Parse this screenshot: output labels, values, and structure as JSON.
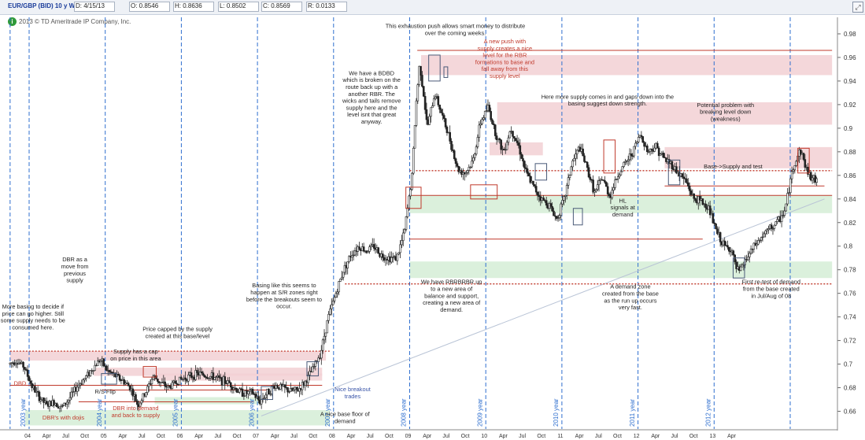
{
  "header": {
    "symbol": "EUR/GBP (BID) 10 y W",
    "date": "D: 4/15/13",
    "open": "O: 0.8546",
    "high": "H: 0.8636",
    "low": "L: 0.8502",
    "close": "C: 0.8569",
    "range": "R: 0.0133"
  },
  "copyright": "2013 © TD Ameritrade IP Company, Inc.",
  "chart_data": {
    "type": "candlestick",
    "y_ticks": [
      0.66,
      0.68,
      0.7,
      0.72,
      0.74,
      0.76,
      0.78,
      0.8,
      0.82,
      0.84,
      0.86,
      0.88,
      0.9,
      0.92,
      0.94,
      0.96,
      0.98
    ],
    "y_tick_labels": [
      "0.66",
      "0.68",
      "0.7",
      "0.72",
      "0.74",
      "0.76",
      "0.78",
      "0.8",
      "0.82",
      "0.84",
      "0.86",
      "0.88",
      "0.9",
      "0.92",
      "0.94",
      "0.96",
      "0.98"
    ],
    "ylim": [
      0.645,
      0.99
    ],
    "x_tick_labels": [
      "04",
      "Apr",
      "Jul",
      "Oct",
      "05",
      "Apr",
      "Jul",
      "Oct",
      "06",
      "Apr",
      "Jul",
      "Oct",
      "07",
      "Apr",
      "Jul",
      "Oct",
      "08",
      "Apr",
      "Jul",
      "Oct",
      "09",
      "Apr",
      "Jul",
      "Oct",
      "10",
      "Apr",
      "Jul",
      "Oct",
      "11",
      "Apr",
      "Jul",
      "Oct",
      "12",
      "Apr",
      "Jul",
      "Oct",
      "13",
      "Apr"
    ],
    "year_labels": [
      "2003 year",
      "2004 year",
      "2005 year",
      "2006 year",
      "2007 year",
      "2008 year",
      "2009 year",
      "2010 year",
      "2011 year",
      "2012 year"
    ],
    "price_path": [
      [
        2003.8,
        0.7
      ],
      [
        2003.9,
        0.703
      ],
      [
        2004.0,
        0.698
      ],
      [
        2004.1,
        0.682
      ],
      [
        2004.2,
        0.672
      ],
      [
        2004.3,
        0.665
      ],
      [
        2004.4,
        0.668
      ],
      [
        2004.5,
        0.663
      ],
      [
        2004.6,
        0.671
      ],
      [
        2004.7,
        0.681
      ],
      [
        2004.8,
        0.688
      ],
      [
        2004.9,
        0.696
      ],
      [
        2005.0,
        0.704
      ],
      [
        2005.1,
        0.694
      ],
      [
        2005.2,
        0.69
      ],
      [
        2005.3,
        0.686
      ],
      [
        2005.4,
        0.68
      ],
      [
        2005.5,
        0.665
      ],
      [
        2005.6,
        0.676
      ],
      [
        2005.7,
        0.69
      ],
      [
        2005.8,
        0.684
      ],
      [
        2005.9,
        0.68
      ],
      [
        2006.0,
        0.685
      ],
      [
        2006.1,
        0.688
      ],
      [
        2006.2,
        0.69
      ],
      [
        2006.3,
        0.692
      ],
      [
        2006.4,
        0.69
      ],
      [
        2006.5,
        0.689
      ],
      [
        2006.6,
        0.686
      ],
      [
        2006.7,
        0.684
      ],
      [
        2006.8,
        0.678
      ],
      [
        2006.9,
        0.675
      ],
      [
        2007.0,
        0.676
      ],
      [
        2007.1,
        0.668
      ],
      [
        2007.2,
        0.676
      ],
      [
        2007.3,
        0.682
      ],
      [
        2007.4,
        0.68
      ],
      [
        2007.5,
        0.677
      ],
      [
        2007.6,
        0.678
      ],
      [
        2007.7,
        0.685
      ],
      [
        2007.8,
        0.696
      ],
      [
        2007.9,
        0.71
      ],
      [
        2008.0,
        0.74
      ],
      [
        2008.1,
        0.76
      ],
      [
        2008.2,
        0.78
      ],
      [
        2008.3,
        0.793
      ],
      [
        2008.4,
        0.8
      ],
      [
        2008.5,
        0.796
      ],
      [
        2008.6,
        0.8
      ],
      [
        2008.7,
        0.792
      ],
      [
        2008.8,
        0.79
      ],
      [
        2008.9,
        0.79
      ],
      [
        2009.0,
        0.812
      ],
      [
        2009.1,
        0.86
      ],
      [
        2009.15,
        0.918
      ],
      [
        2009.2,
        0.955
      ],
      [
        2009.25,
        0.93
      ],
      [
        2009.3,
        0.9
      ],
      [
        2009.4,
        0.93
      ],
      [
        2009.5,
        0.91
      ],
      [
        2009.6,
        0.89
      ],
      [
        2009.7,
        0.865
      ],
      [
        2009.8,
        0.862
      ],
      [
        2009.9,
        0.872
      ],
      [
        2010.0,
        0.905
      ],
      [
        2010.1,
        0.918
      ],
      [
        2010.2,
        0.895
      ],
      [
        2010.3,
        0.88
      ],
      [
        2010.4,
        0.9
      ],
      [
        2010.5,
        0.885
      ],
      [
        2010.6,
        0.862
      ],
      [
        2010.7,
        0.85
      ],
      [
        2010.8,
        0.84
      ],
      [
        2010.9,
        0.835
      ],
      [
        2011.0,
        0.823
      ],
      [
        2011.1,
        0.84
      ],
      [
        2011.2,
        0.87
      ],
      [
        2011.3,
        0.884
      ],
      [
        2011.4,
        0.866
      ],
      [
        2011.5,
        0.845
      ],
      [
        2011.6,
        0.858
      ],
      [
        2011.7,
        0.842
      ],
      [
        2011.8,
        0.86
      ],
      [
        2011.9,
        0.87
      ],
      [
        2012.0,
        0.88
      ],
      [
        2012.1,
        0.895
      ],
      [
        2012.2,
        0.88
      ],
      [
        2012.3,
        0.885
      ],
      [
        2012.4,
        0.875
      ],
      [
        2012.5,
        0.87
      ],
      [
        2012.6,
        0.862
      ],
      [
        2012.7,
        0.855
      ],
      [
        2012.8,
        0.84
      ],
      [
        2012.9,
        0.838
      ],
      [
        2013.0,
        0.832
      ],
      [
        2013.1,
        0.812
      ],
      [
        2013.2,
        0.8
      ],
      [
        2013.3,
        0.797
      ],
      [
        2013.35,
        0.782
      ],
      [
        2013.4,
        0.778
      ],
      [
        2013.5,
        0.79
      ],
      [
        2013.6,
        0.8
      ],
      [
        2013.7,
        0.808
      ],
      [
        2013.8,
        0.815
      ],
      [
        2013.9,
        0.82
      ],
      [
        2014.0,
        0.83
      ],
      [
        2014.1,
        0.865
      ],
      [
        2014.2,
        0.882
      ],
      [
        2014.3,
        0.862
      ],
      [
        2014.4,
        0.855
      ]
    ],
    "supply_zones": [
      {
        "x0": 2003.8,
        "x1": 2007.95,
        "y0": 0.703,
        "y1": 0.711
      },
      {
        "x0": 2004.9,
        "x1": 2007.9,
        "y0": 0.69,
        "y1": 0.697
      },
      {
        "x0": 2005.7,
        "x1": 2007.9,
        "y0": 0.686,
        "y1": 0.692
      },
      {
        "x0": 2009.2,
        "x1": 2014.6,
        "y0": 0.945,
        "y1": 0.962
      },
      {
        "x0": 2010.2,
        "x1": 2014.6,
        "y0": 0.903,
        "y1": 0.922
      },
      {
        "x0": 2010.1,
        "x1": 2010.8,
        "y0": 0.877,
        "y1": 0.888
      },
      {
        "x0": 2012.4,
        "x1": 2014.6,
        "y0": 0.866,
        "y1": 0.884
      }
    ],
    "demand_zones": [
      {
        "x0": 2004.0,
        "x1": 2008.0,
        "y0": 0.648,
        "y1": 0.661
      },
      {
        "x0": 2005.7,
        "x1": 2007.1,
        "y0": 0.666,
        "y1": 0.672
      },
      {
        "x0": 2009.05,
        "x1": 2014.6,
        "y0": 0.828,
        "y1": 0.843
      },
      {
        "x0": 2009.05,
        "x1": 2014.6,
        "y0": 0.773,
        "y1": 0.787
      }
    ],
    "levels": [
      {
        "y": 0.682,
        "x0": 2003.8,
        "x1": 2007.9
      },
      {
        "y": 0.678,
        "x0": 2005.0,
        "x1": 2007.2
      },
      {
        "y": 0.668,
        "x0": 2004.7,
        "x1": 2007.0
      },
      {
        "y": 0.806,
        "x0": 2009.05,
        "x1": 2012.9
      },
      {
        "y": 0.843,
        "x0": 2009.05,
        "x1": 2014.6
      },
      {
        "y": 0.851,
        "x0": 2012.4,
        "x1": 2014.5
      },
      {
        "y": 0.966,
        "x0": 2009.15,
        "x1": 2014.6
      }
    ],
    "dotted_levels": [
      {
        "y": 0.711,
        "x0": 2003.8,
        "x1": 2008.0
      },
      {
        "y": 0.768,
        "x0": 2008.2,
        "x1": 2014.6
      },
      {
        "y": 0.864,
        "x0": 2009.05,
        "x1": 2014.6
      }
    ],
    "trendline": [
      [
        2007.1,
        0.656
      ],
      [
        2014.5,
        0.84
      ]
    ],
    "boxes": [
      {
        "x0": 2005.0,
        "x1": 2005.2,
        "y0": 0.683,
        "y1": 0.692
      },
      {
        "x0": 2005.55,
        "x1": 2005.72,
        "y0": 0.689,
        "y1": 0.698
      },
      {
        "x0": 2007.1,
        "x1": 2007.25,
        "y0": 0.67,
        "y1": 0.681
      },
      {
        "x0": 2007.7,
        "x1": 2007.85,
        "y0": 0.69,
        "y1": 0.702
      },
      {
        "x0": 2009.0,
        "x1": 2009.2,
        "y0": 0.832,
        "y1": 0.85
      },
      {
        "x0": 2009.3,
        "x1": 2009.45,
        "y0": 0.94,
        "y1": 0.962
      },
      {
        "x0": 2009.5,
        "x1": 2009.55,
        "y0": 0.943,
        "y1": 0.952
      },
      {
        "x0": 2009.85,
        "x1": 2010.2,
        "y0": 0.84,
        "y1": 0.852
      },
      {
        "x0": 2010.7,
        "x1": 2010.85,
        "y0": 0.856,
        "y1": 0.87
      },
      {
        "x0": 2011.2,
        "x1": 2011.32,
        "y0": 0.818,
        "y1": 0.832
      },
      {
        "x0": 2011.6,
        "x1": 2011.75,
        "y0": 0.862,
        "y1": 0.89
      },
      {
        "x0": 2012.45,
        "x1": 2012.6,
        "y0": 0.852,
        "y1": 0.873
      },
      {
        "x0": 2013.3,
        "x1": 2013.45,
        "y0": 0.773,
        "y1": 0.79
      },
      {
        "x0": 2014.15,
        "x1": 2014.3,
        "y0": 0.862,
        "y1": 0.883
      }
    ],
    "annotations": [
      {
        "text": "This exhaustion push allows smart money to distribute\nover the coming weeks.",
        "x": 2009.65,
        "y": 0.985,
        "color": "#222222",
        "anchor": "middle"
      },
      {
        "text": "A new push with\nsupply creates a nice\nlevel for the RBR\nformations to base and\nfall away from this\nsupply level",
        "x": 2010.3,
        "y": 0.972,
        "color": "#c0392b",
        "anchor": "middle"
      },
      {
        "text": "We have a BDBD\nwhich is broken on the\nroute back up with a\nanother RBR. The\nwicks and tails remove\nsupply here and the\nlevel isnt that great\nanyway.",
        "x": 2008.55,
        "y": 0.945,
        "color": "#222222",
        "anchor": "middle"
      },
      {
        "text": "Here more supply comes in and gaps down into the\nbasing suggest down strength.",
        "x": 2011.65,
        "y": 0.925,
        "color": "#222222",
        "anchor": "middle"
      },
      {
        "text": "Potential problem with\nbreaking level down\n(weakness)",
        "x": 2013.2,
        "y": 0.918,
        "color": "#222222",
        "anchor": "middle"
      },
      {
        "text": "Base->Supply and test",
        "x": 2013.3,
        "y": 0.866,
        "color": "#222222",
        "anchor": "middle"
      },
      {
        "text": "HL\nsignals at\ndemand",
        "x": 2011.85,
        "y": 0.837,
        "color": "#222222",
        "anchor": "middle"
      },
      {
        "text": "We have RBRBRBR up\nto a new area of\nbalance and support,\ncreating a new area of\ndemand.",
        "x": 2009.6,
        "y": 0.768,
        "color": "#222222",
        "anchor": "middle"
      },
      {
        "text": "A demand zone\ncreated from the base\nas the run up occurs\nvery fast.",
        "x": 2011.95,
        "y": 0.764,
        "color": "#222222",
        "anchor": "middle"
      },
      {
        "text": "First re-test of demand\nfrom the base created\nin Jul/Aug of 08",
        "x": 2013.8,
        "y": 0.768,
        "color": "#222222",
        "anchor": "middle"
      },
      {
        "text": "Basing like this seems to\nhappen at S/R zones right\nbefore the breakouts seem to\noccur.",
        "x": 2007.4,
        "y": 0.765,
        "color": "#222222",
        "anchor": "middle"
      },
      {
        "text": "DBR as a\nmove from\nprevious\nsupply",
        "x": 2004.65,
        "y": 0.787,
        "color": "#222222",
        "anchor": "middle"
      },
      {
        "text": "More basing to decide if\nprice can go higher.  Still\nsome supply needs to be\nconsumed here.",
        "x": 2004.1,
        "y": 0.747,
        "color": "#222222",
        "anchor": "middle"
      },
      {
        "text": "Price capped by the supply\ncreated at this base/level",
        "x": 2006.0,
        "y": 0.728,
        "color": "#222222",
        "anchor": "middle"
      },
      {
        "text": "Supply has a cap\non price in this area",
        "x": 2005.45,
        "y": 0.709,
        "color": "#222222",
        "anchor": "middle"
      },
      {
        "text": "R/S Flip",
        "x": 2005.05,
        "y": 0.675,
        "color": "#222222",
        "anchor": "middle"
      },
      {
        "text": "DBD",
        "x": 2003.85,
        "y": 0.682,
        "color": "#c0392b",
        "anchor": "start"
      },
      {
        "text": "DBR into demand\nand back to supply",
        "x": 2005.45,
        "y": 0.661,
        "color": "#c0392b",
        "anchor": "middle"
      },
      {
        "text": "DBR's with dojis",
        "x": 2004.5,
        "y": 0.653,
        "color": "#c0392b",
        "anchor": "middle"
      },
      {
        "text": "Nice breakout\ntrades",
        "x": 2008.3,
        "y": 0.677,
        "color": "#3a55a8",
        "anchor": "middle"
      },
      {
        "text": "A nice base floor of\ndemand",
        "x": 2008.2,
        "y": 0.656,
        "color": "#222222",
        "anchor": "middle"
      }
    ]
  },
  "colors": {
    "supply": "#f2d0d4",
    "demand": "#d7eed8",
    "level": "#c0392b",
    "trend": "#b9c4d6",
    "grid": "#2f6fcf",
    "candle": "#222222",
    "arrow": "#9aa3b8",
    "box": "#4a5a78"
  }
}
